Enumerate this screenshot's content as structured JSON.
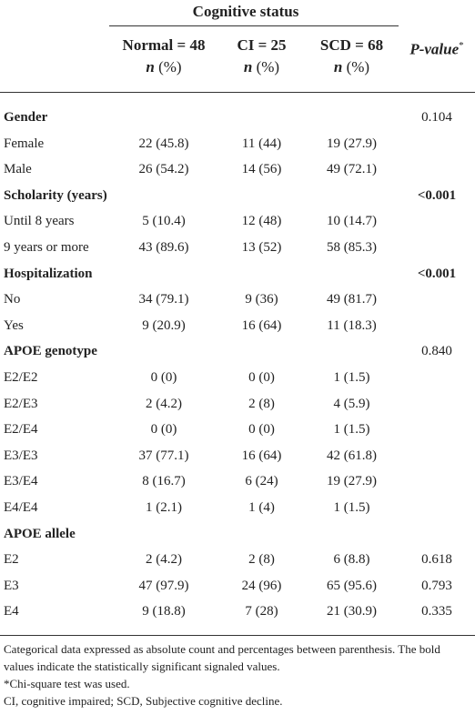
{
  "header": {
    "group_title": "Cognitive status",
    "columns": [
      {
        "top": "Normal = 48",
        "n": "n",
        "pct": " (%)"
      },
      {
        "top": "CI = 25",
        "n": "n",
        "pct": " (%)"
      },
      {
        "top": "SCD = 68",
        "n": "n",
        "pct": " (%)"
      }
    ],
    "pvalue_label": "P-value",
    "pvalue_mark": "*"
  },
  "rows": [
    {
      "label": "Gender",
      "bold": true,
      "v": [
        "",
        "",
        ""
      ],
      "p": "0.104",
      "pbold": false
    },
    {
      "label": "Female",
      "bold": false,
      "v": [
        "22 (45.8)",
        "11 (44)",
        "19 (27.9)"
      ],
      "p": "",
      "pbold": false
    },
    {
      "label": "Male",
      "bold": false,
      "v": [
        "26 (54.2)",
        "14 (56)",
        "49 (72.1)"
      ],
      "p": "",
      "pbold": false
    },
    {
      "label": "Scholarity (years)",
      "bold": true,
      "v": [
        "",
        "",
        ""
      ],
      "p": "<0.001",
      "pbold": true
    },
    {
      "label": "Until 8 years",
      "bold": false,
      "v": [
        "5 (10.4)",
        "12 (48)",
        "10 (14.7)"
      ],
      "p": "",
      "pbold": false
    },
    {
      "label": "9 years or more",
      "bold": false,
      "v": [
        "43 (89.6)",
        "13 (52)",
        "58 (85.3)"
      ],
      "p": "",
      "pbold": false
    },
    {
      "label": "Hospitalization",
      "bold": true,
      "v": [
        "",
        "",
        ""
      ],
      "p": "<0.001",
      "pbold": true
    },
    {
      "label": "No",
      "bold": false,
      "v": [
        "34 (79.1)",
        "9 (36)",
        "49 (81.7)"
      ],
      "p": "",
      "pbold": false
    },
    {
      "label": "Yes",
      "bold": false,
      "v": [
        "9 (20.9)",
        "16 (64)",
        "11 (18.3)"
      ],
      "p": "",
      "pbold": false
    },
    {
      "label": "APOE genotype",
      "bold": true,
      "v": [
        "",
        "",
        ""
      ],
      "p": "0.840",
      "pbold": false
    },
    {
      "label": "E2/E2",
      "bold": false,
      "v": [
        "0 (0)",
        "0 (0)",
        "1 (1.5)"
      ],
      "p": "",
      "pbold": false
    },
    {
      "label": "E2/E3",
      "bold": false,
      "v": [
        "2 (4.2)",
        "2 (8)",
        "4 (5.9)"
      ],
      "p": "",
      "pbold": false
    },
    {
      "label": "E2/E4",
      "bold": false,
      "v": [
        "0 (0)",
        "0 (0)",
        "1 (1.5)"
      ],
      "p": "",
      "pbold": false
    },
    {
      "label": "E3/E3",
      "bold": false,
      "v": [
        "37 (77.1)",
        "16 (64)",
        "42 (61.8)"
      ],
      "p": "",
      "pbold": false
    },
    {
      "label": "E3/E4",
      "bold": false,
      "v": [
        "8 (16.7)",
        "6 (24)",
        "19 (27.9)"
      ],
      "p": "",
      "pbold": false
    },
    {
      "label": "E4/E4",
      "bold": false,
      "v": [
        "1 (2.1)",
        "1 (4)",
        "1 (1.5)"
      ],
      "p": "",
      "pbold": false
    },
    {
      "label": "APOE allele",
      "bold": true,
      "v": [
        "",
        "",
        ""
      ],
      "p": "",
      "pbold": false
    },
    {
      "label": "E2",
      "bold": false,
      "v": [
        "2 (4.2)",
        "2 (8)",
        "6 (8.8)"
      ],
      "p": "0.618",
      "pbold": false
    },
    {
      "label": "E3",
      "bold": false,
      "v": [
        "47 (97.9)",
        "24 (96)",
        "65 (95.6)"
      ],
      "p": "0.793",
      "pbold": false
    },
    {
      "label": "E4",
      "bold": false,
      "v": [
        "9 (18.8)",
        "7 (28)",
        "21 (30.9)"
      ],
      "p": "0.335",
      "pbold": false
    }
  ],
  "footnotes": [
    "Categorical data expressed as absolute count and percentages between parenthesis. The bold values indicate the statistically significant signaled values.",
    "*Chi-square test was used.",
    "CI, cognitive impaired; SCD, Subjective cognitive decline."
  ]
}
